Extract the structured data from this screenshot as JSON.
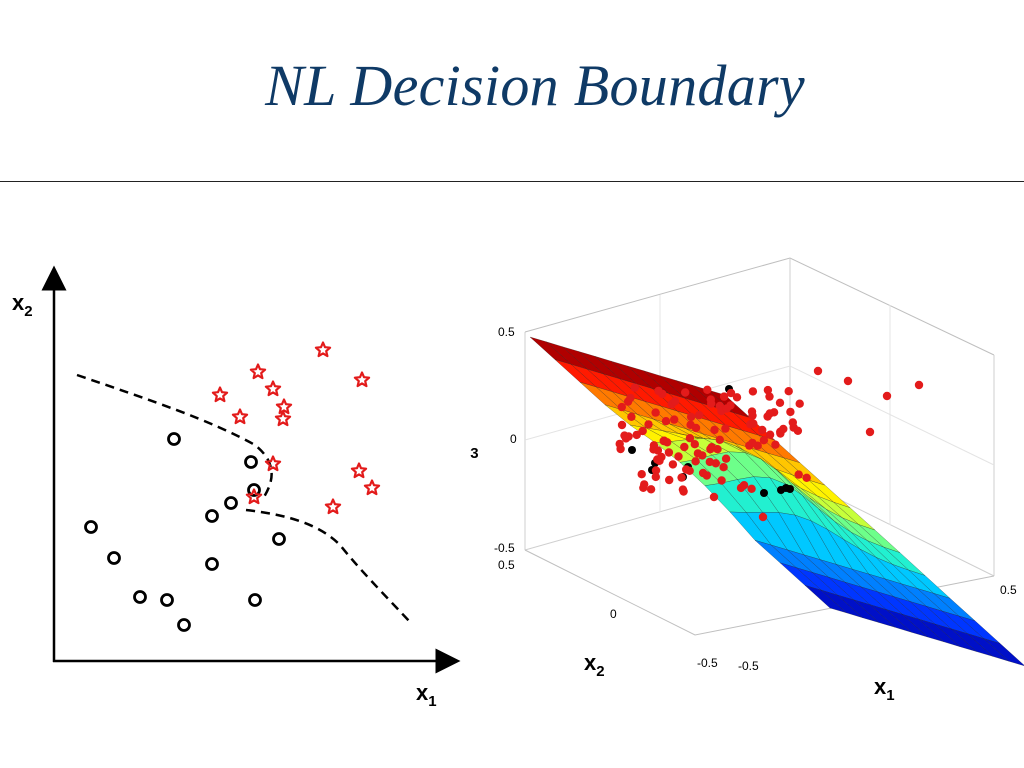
{
  "slide": {
    "title": "NL Decision Boundary"
  },
  "left_plot": {
    "x_axis_label": "x",
    "x_axis_subscript": "1",
    "y_axis_label": "x",
    "y_axis_subscript": "2",
    "circle_color": "#000000",
    "star_color": "#e31b1b",
    "boundary_style": "dashed"
  },
  "right_plot": {
    "x_axis_label": "x",
    "x_axis_subscript": "1",
    "y_axis_label": "x",
    "y_axis_subscript": "2",
    "z_axis_label": "x",
    "z_axis_subscript": "3",
    "z_ticks": [
      "0.5",
      "0",
      "-0.5"
    ],
    "x2_ticks": [
      "0.5",
      "0",
      "-0.5"
    ],
    "x1_ticks": [
      "-0.5",
      "0.5"
    ],
    "surface_colormap": "jet",
    "positive_point_color": "#e31b1b",
    "negative_point_color": "#000000"
  }
}
